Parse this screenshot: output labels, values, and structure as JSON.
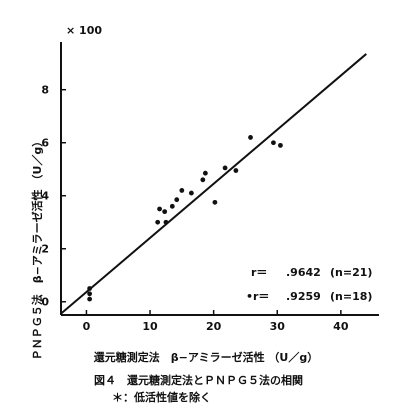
{
  "chart_data": {
    "type": "scatter",
    "title": "",
    "scale_note": "× 100",
    "xlabel": "還元糖測定法　β−アミラーゼ活性 （U／g）",
    "ylabel": "ＰＮＰＧ５法　β−アミラーゼ活性 （U／g）",
    "xlim": [
      -4,
      46
    ],
    "ylim": [
      -0.5,
      9.8
    ],
    "x_ticks": [
      0,
      10,
      20,
      30,
      40
    ],
    "y_ticks": [
      0,
      2,
      4,
      6,
      8
    ],
    "grid": false,
    "regression_line": {
      "from": [
        -4,
        -0.45
      ],
      "to": [
        44,
        9.35
      ]
    },
    "points": [
      {
        "x": 0.5,
        "y": 0.3
      },
      {
        "x": 0.5,
        "y": 0.1
      },
      {
        "x": 0.5,
        "y": 0.5
      },
      {
        "x": 11.2,
        "y": 3.0
      },
      {
        "x": 11.5,
        "y": 3.5
      },
      {
        "x": 12.3,
        "y": 3.4
      },
      {
        "x": 12.5,
        "y": 3.0
      },
      {
        "x": 13.5,
        "y": 3.6
      },
      {
        "x": 14.2,
        "y": 3.85
      },
      {
        "x": 15.0,
        "y": 4.2
      },
      {
        "x": 16.5,
        "y": 4.1
      },
      {
        "x": 18.3,
        "y": 4.6
      },
      {
        "x": 18.7,
        "y": 4.85
      },
      {
        "x": 20.2,
        "y": 3.75
      },
      {
        "x": 21.8,
        "y": 5.05
      },
      {
        "x": 23.5,
        "y": 4.95
      },
      {
        "x": 25.8,
        "y": 6.2
      },
      {
        "x": 29.4,
        "y": 6.0
      },
      {
        "x": 30.5,
        "y": 5.9
      }
    ],
    "annotations": [
      {
        "prefix": "",
        "label": "r＝",
        "value": ".9642",
        "n": "(n=21)"
      },
      {
        "prefix": "•",
        "label": "r＝",
        "value": ".9259",
        "n": "(n=18)"
      }
    ],
    "caption": "図４　還元糖測定法とＰＮＰＧ５法の相関",
    "footnote": "＊：低活性値を除く"
  }
}
